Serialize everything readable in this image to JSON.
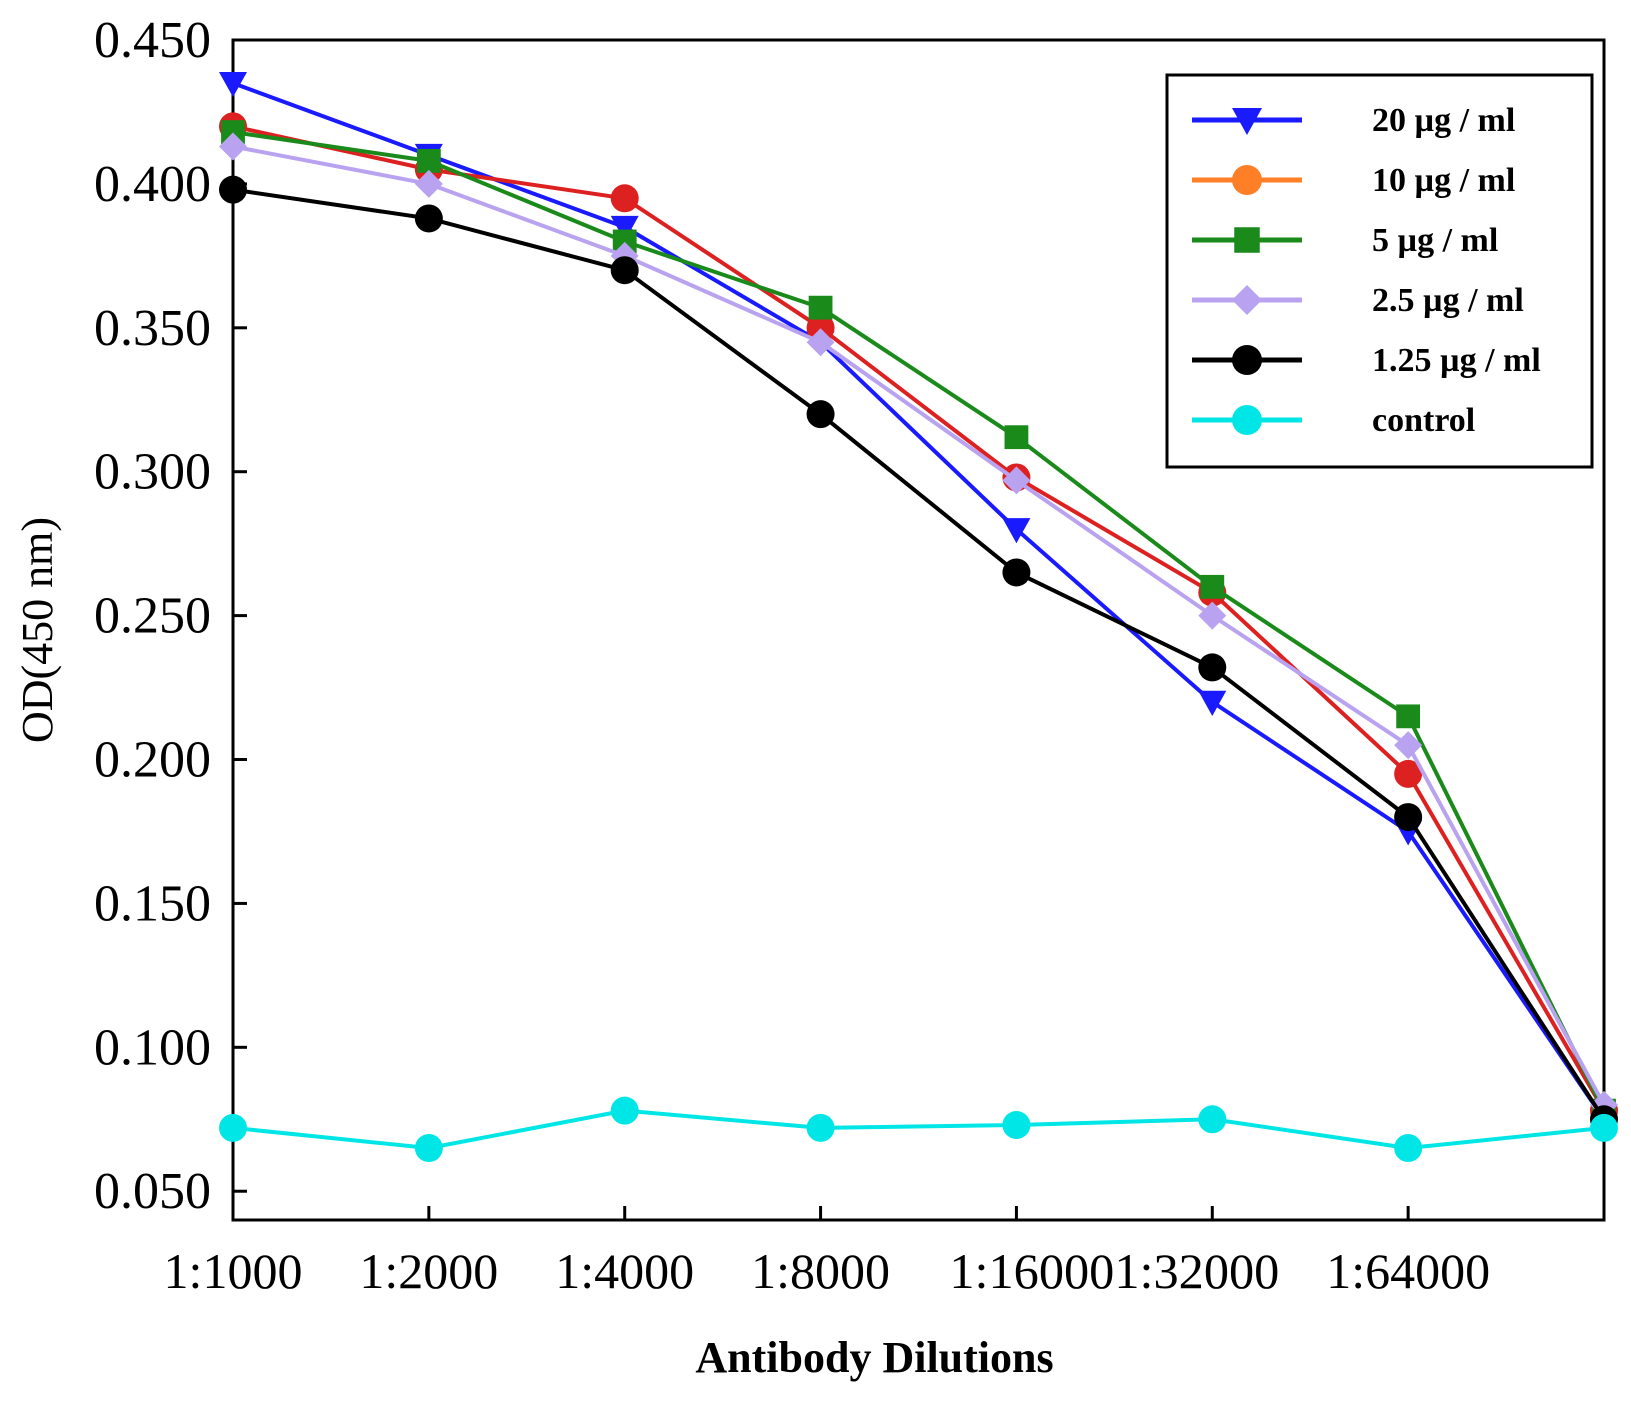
{
  "chart_data": {
    "type": "line",
    "title": "",
    "xlabel": "Antibody Dilutions",
    "ylabel": "OD(450 nm)",
    "ylim": [
      0.04,
      0.45
    ],
    "yticks": [
      "0.050",
      "0.100",
      "0.150",
      "0.200",
      "0.250",
      "0.300",
      "0.350",
      "0.400",
      "0.450"
    ],
    "ytick_values": [
      0.05,
      0.1,
      0.15,
      0.2,
      0.25,
      0.3,
      0.35,
      0.4,
      0.45
    ],
    "categories": [
      "1:1000",
      "1:2000",
      "1:4000",
      "1:8000",
      "1:16000",
      "1:32000",
      "1:64000",
      ""
    ],
    "x_tick_labels": [
      "1:1000",
      "1:2000",
      "1:4000",
      "1:8000",
      "1:160001:32000",
      "1:64000"
    ],
    "legend_position": "top-right",
    "grid": false,
    "series": [
      {
        "name": "20 µg / ml",
        "color": "#1a1aff",
        "marker": "triangle-down",
        "values": [
          0.435,
          0.41,
          0.385,
          0.345,
          0.28,
          0.22,
          0.175,
          0.075
        ]
      },
      {
        "name": "10 µg / ml",
        "color": "#dd2020",
        "legend_color": "#ff7f27",
        "marker": "circle",
        "values": [
          0.42,
          0.405,
          0.395,
          0.35,
          0.298,
          0.258,
          0.195,
          0.078
        ]
      },
      {
        "name": "5 µg / ml",
        "color": "#1a8a1a",
        "marker": "square",
        "values": [
          0.418,
          0.408,
          0.38,
          0.357,
          0.312,
          0.26,
          0.215,
          0.078
        ]
      },
      {
        "name": "2.5 µg / ml",
        "color": "#b9a3f0",
        "marker": "diamond",
        "values": [
          0.413,
          0.4,
          0.375,
          0.345,
          0.297,
          0.25,
          0.205,
          0.08
        ]
      },
      {
        "name": "1.25 µg / ml",
        "color": "#000000",
        "marker": "circle",
        "values": [
          0.398,
          0.388,
          0.37,
          0.32,
          0.265,
          0.232,
          0.18,
          0.075
        ]
      },
      {
        "name": "control",
        "color": "#00e6e6",
        "marker": "circle",
        "values": [
          0.072,
          0.065,
          0.078,
          0.072,
          0.073,
          0.075,
          0.065,
          0.072
        ]
      }
    ]
  }
}
